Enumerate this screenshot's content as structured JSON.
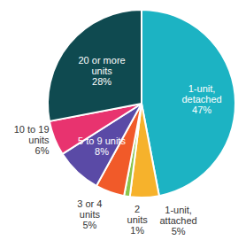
{
  "chart_data": {
    "type": "pie",
    "categories": [
      "1-unit, detached",
      "1-unit, attached",
      "2 units",
      "3 or 4 units",
      "5 to 9 units",
      "10 to 19 units",
      "20 or more units"
    ],
    "values": [
      47,
      5,
      1,
      5,
      8,
      6,
      28
    ],
    "value_labels": [
      "47%",
      "5%",
      "1%",
      "5%",
      "8%",
      "6%",
      "28%"
    ],
    "colors": [
      "#1cb3c3",
      "#f6b22c",
      "#8cc54b",
      "#f15a29",
      "#5a4aa6",
      "#e8336f",
      "#0f4a50"
    ],
    "data_labels": true
  }
}
